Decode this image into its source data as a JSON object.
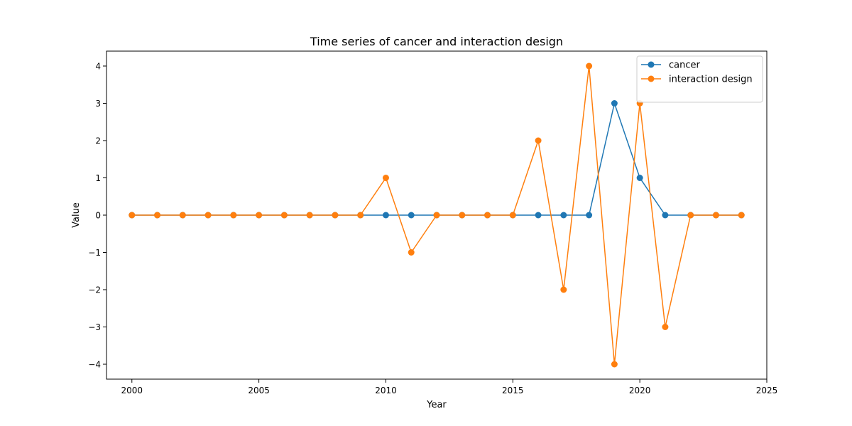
{
  "chart_data": {
    "type": "line",
    "title": "Time series of cancer and interaction design",
    "xlabel": "Year",
    "ylabel": "Value",
    "x": [
      2000,
      2001,
      2002,
      2003,
      2004,
      2005,
      2006,
      2007,
      2008,
      2009,
      2010,
      2011,
      2012,
      2013,
      2014,
      2015,
      2016,
      2017,
      2018,
      2019,
      2020,
      2021,
      2022,
      2023,
      2024
    ],
    "xlim": [
      1999,
      2025
    ],
    "ylim": [
      -4.4,
      4.4
    ],
    "xticks": [
      2000,
      2005,
      2010,
      2015,
      2020,
      2025
    ],
    "yticks": [
      -4,
      -3,
      -2,
      -1,
      0,
      1,
      2,
      3,
      4
    ],
    "grid": false,
    "legend_position": "top-right",
    "series": [
      {
        "name": "cancer",
        "color": "#1f77b4",
        "marker": "circle",
        "values": [
          0,
          0,
          0,
          0,
          0,
          0,
          0,
          0,
          0,
          0,
          0,
          0,
          0,
          0,
          0,
          0,
          0,
          0,
          0,
          3,
          1,
          0,
          0,
          0,
          0
        ]
      },
      {
        "name": "interaction design",
        "color": "#ff7f0e",
        "marker": "circle",
        "values": [
          0,
          0,
          0,
          0,
          0,
          0,
          0,
          0,
          0,
          0,
          1,
          -1,
          0,
          0,
          0,
          0,
          2,
          -2,
          4,
          -4,
          3,
          -3,
          0,
          0,
          0
        ]
      }
    ]
  }
}
